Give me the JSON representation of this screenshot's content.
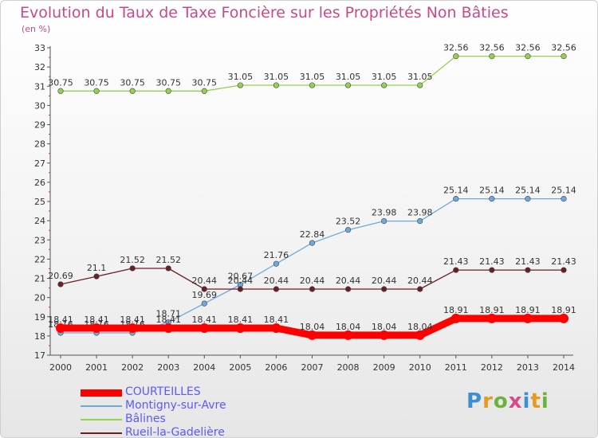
{
  "title": "Evolution du Taux de Taxe Foncière sur les Propriétés Non Bâties",
  "unit": "(en %)",
  "logo": {
    "letters": [
      "P",
      "r",
      "o",
      "x",
      "i",
      "t",
      "i"
    ],
    "colors": [
      "#3b8fd6",
      "#e69a1f",
      "#6cb33e",
      "#d64a8a",
      "#3b8fd6",
      "#e69a1f",
      "#6cb33e"
    ]
  },
  "chart_data": {
    "type": "line",
    "title": "Evolution du Taux de Taxe Foncière sur les Propriétés Non Bâties",
    "xlabel": "",
    "ylabel": "(en %)",
    "x": [
      "2000",
      "2001",
      "2002",
      "2003",
      "2004",
      "2005",
      "2006",
      "2007",
      "2008",
      "2009",
      "2010",
      "2011",
      "2012",
      "2013",
      "2014"
    ],
    "ylim": [
      17,
      33
    ],
    "yticks": [
      "17",
      "18",
      "19",
      "20",
      "21",
      "22",
      "23",
      "24",
      "25",
      "26",
      "27",
      "28",
      "29",
      "30",
      "31",
      "32",
      "33"
    ],
    "grid": false,
    "legend": "bottom-left",
    "series": [
      {
        "name": "COURTEILLES",
        "color": "#ff0000",
        "thick": true,
        "values": [
          18.41,
          18.41,
          18.41,
          18.41,
          18.41,
          18.41,
          18.41,
          18.04,
          18.04,
          18.04,
          18.04,
          18.91,
          18.91,
          18.91,
          18.91
        ],
        "labels": [
          "18.41",
          "18.41",
          "18.41",
          "18.41",
          "18.41",
          "18.41",
          "18.41",
          "18.04",
          "18.04",
          "18.04",
          "18.04",
          "18.91",
          "18.91",
          "18.91",
          "18.91"
        ]
      },
      {
        "name": "Montigny-sur-Avre",
        "color": "#6fa8dc",
        "thick": false,
        "values": [
          18.16,
          18.16,
          18.16,
          18.71,
          19.69,
          20.67,
          21.76,
          22.84,
          23.52,
          23.98,
          23.98,
          25.14,
          25.14,
          25.14,
          25.14
        ],
        "labels": [
          "18.16",
          "18.16",
          "18.16",
          "18.71",
          "19.69",
          "20.67",
          "21.76",
          "22.84",
          "23.52",
          "23.98",
          "23.98",
          "25.14",
          "25.14",
          "25.14",
          "25.14"
        ]
      },
      {
        "name": "Bâlines",
        "color": "#93d150",
        "thick": false,
        "values": [
          30.75,
          30.75,
          30.75,
          30.75,
          30.75,
          31.05,
          31.05,
          31.05,
          31.05,
          31.05,
          31.05,
          32.56,
          32.56,
          32.56,
          32.56
        ],
        "labels": [
          "30.75",
          "30.75",
          "30.75",
          "30.75",
          "30.75",
          "31.05",
          "31.05",
          "31.05",
          "31.05",
          "31.05",
          "31.05",
          "32.56",
          "32.56",
          "32.56",
          "32.56"
        ]
      },
      {
        "name": "Rueil-la-Gadelière",
        "color": "#6b1f24",
        "thick": false,
        "values": [
          20.69,
          21.1,
          21.52,
          21.52,
          20.44,
          20.44,
          20.44,
          20.44,
          20.44,
          20.44,
          20.44,
          21.43,
          21.43,
          21.43,
          21.43
        ],
        "labels": [
          "20.69",
          "21.1",
          "21.52",
          "21.52",
          "20.44",
          "20.44",
          "20.44",
          "20.44",
          "20.44",
          "20.44",
          "20.44",
          "21.43",
          "21.43",
          "21.43",
          "21.43"
        ]
      }
    ]
  }
}
